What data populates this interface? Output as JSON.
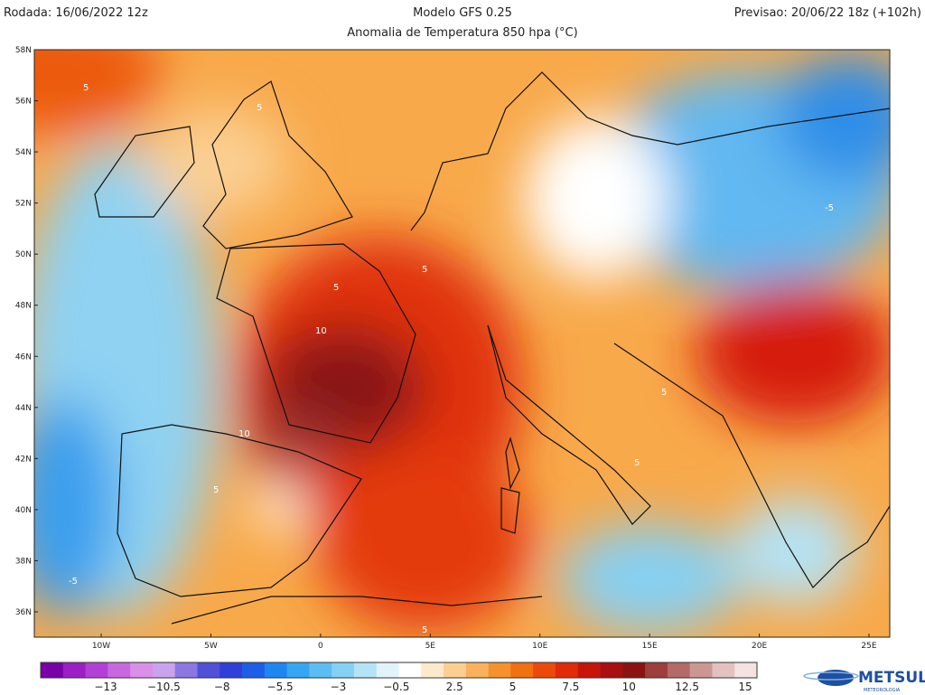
{
  "header": {
    "left": "Rodada: 16/06/2022 12z",
    "title": "Modelo GFS 0.25",
    "subtitle": "Anomalia de Temperatura 850 hpa (°C)",
    "right": "Previsao: 20/06/22 18z (+102h)"
  },
  "map": {
    "lat_labels": [
      "58N",
      "56N",
      "54N",
      "52N",
      "50N",
      "48N",
      "46N",
      "44N",
      "42N",
      "40N",
      "38N",
      "36N"
    ],
    "lon_labels": [
      "10W",
      "5W",
      "0",
      "5E",
      "10E",
      "15E",
      "20E",
      "25E"
    ],
    "contour_labels": [
      "5",
      "5",
      "-5",
      "5",
      "5",
      "10",
      "10",
      "5",
      "5",
      "5",
      "-5",
      "5"
    ]
  },
  "colorbar": {
    "labels": [
      "−13",
      "−10.5",
      "−8",
      "−5.5",
      "−3",
      "−0.5",
      "2.5",
      "5",
      "7.5",
      "10",
      "12.5",
      "15"
    ],
    "colors": [
      "#7a00a8",
      "#9b1fc4",
      "#b43fd6",
      "#c867e0",
      "#d98ee8",
      "#c9a3ee",
      "#8b76e4",
      "#5050d8",
      "#2f3fd9",
      "#1c5fe6",
      "#1e86f0",
      "#35a6f3",
      "#5cbdf3",
      "#86d0f3",
      "#b4e3f6",
      "#e0f3fa",
      "#ffffff",
      "#fde9cc",
      "#fbcf92",
      "#f9b15c",
      "#f6922c",
      "#f26f12",
      "#ec4a0b",
      "#e02a08",
      "#c8150a",
      "#a80f0e",
      "#8a1213",
      "#9d3f3c",
      "#b46a66",
      "#cc9793",
      "#e2c1be",
      "#f5e3e1"
    ]
  },
  "logo": {
    "name": "METSUL",
    "tagline": "METEOROLOGIA"
  }
}
